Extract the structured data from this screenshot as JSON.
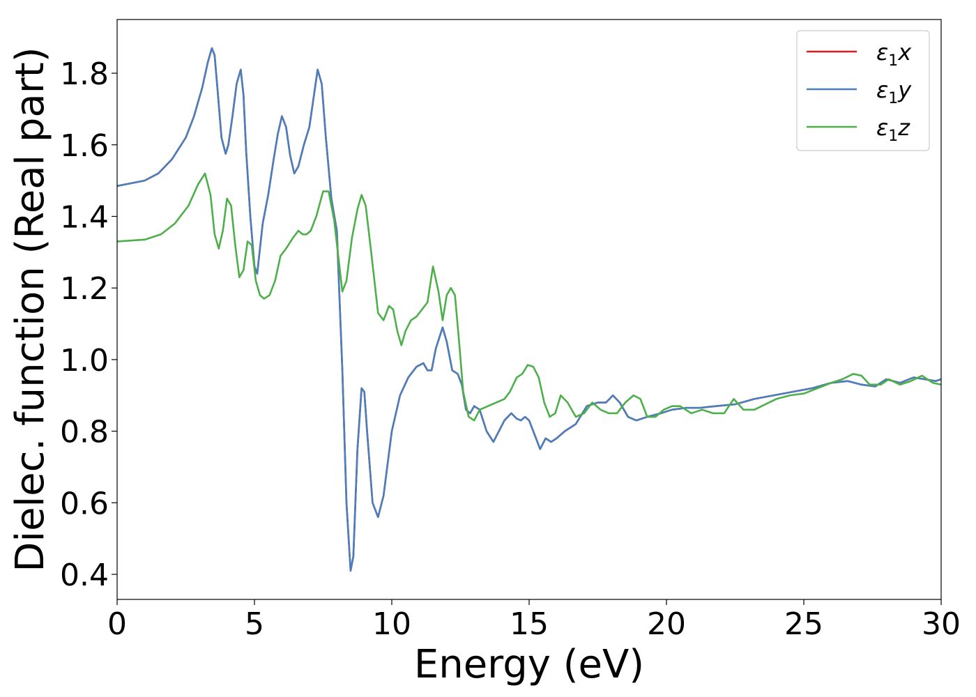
{
  "chart_data": {
    "type": "line",
    "title": "",
    "xlabel": "Energy (eV)",
    "ylabel": "Dielec. function (Real part)",
    "xlim": [
      0,
      30
    ],
    "ylim": [
      0.33,
      1.95
    ],
    "xticks": [
      0,
      5,
      10,
      15,
      20,
      25,
      30
    ],
    "yticks": [
      0.4,
      0.6,
      0.8,
      1.0,
      1.2,
      1.4,
      1.6,
      1.8
    ],
    "xtick_labels": [
      "0",
      "5",
      "10",
      "15",
      "20",
      "25",
      "30"
    ],
    "ytick_labels": [
      "0.4",
      "0.6",
      "0.8",
      "1.0",
      "1.2",
      "1.4",
      "1.6",
      "1.8"
    ],
    "grid": false,
    "legend_position": "top-right",
    "series": [
      {
        "name": "ε₁x",
        "legend_main": "ε",
        "legend_sub": "1",
        "legend_suffix": "x",
        "color": "#e41a1c",
        "x": [
          0,
          1,
          1.5,
          2,
          2.5,
          2.8,
          3.1,
          3.3,
          3.45,
          3.55,
          3.65,
          3.8,
          3.95,
          4.05,
          4.2,
          4.35,
          4.5,
          4.6,
          4.7,
          4.85,
          5.0,
          5.1,
          5.3,
          5.5,
          5.7,
          5.85,
          6.0,
          6.15,
          6.3,
          6.45,
          6.6,
          6.8,
          7.0,
          7.15,
          7.3,
          7.45,
          7.6,
          7.8,
          8.0,
          8.2,
          8.35,
          8.5,
          8.6,
          8.75,
          8.9,
          9.0,
          9.1,
          9.3,
          9.5,
          9.7,
          10.0,
          10.3,
          10.6,
          10.9,
          11.15,
          11.3,
          11.45,
          11.6,
          11.85,
          12.0,
          12.2,
          12.4,
          12.55,
          12.7,
          12.85,
          13.0,
          13.2,
          13.45,
          13.7,
          13.9,
          14.1,
          14.35,
          14.55,
          14.7,
          14.85,
          15.0,
          15.2,
          15.4,
          15.6,
          15.8,
          16.0,
          16.3,
          16.7,
          17.1,
          17.5,
          17.8,
          18.05,
          18.3,
          18.6,
          18.9,
          19.3,
          19.8,
          20.2,
          20.7,
          21.2,
          21.8,
          22.5,
          23.2,
          23.9,
          24.6,
          25.3,
          26.0,
          26.6,
          27.1,
          27.6,
          28.0,
          28.5,
          29.0,
          29.4,
          29.8,
          30.0
        ],
        "y": [
          1.485,
          1.5,
          1.52,
          1.56,
          1.62,
          1.68,
          1.76,
          1.83,
          1.87,
          1.85,
          1.76,
          1.62,
          1.575,
          1.6,
          1.68,
          1.77,
          1.81,
          1.74,
          1.58,
          1.4,
          1.26,
          1.24,
          1.38,
          1.46,
          1.56,
          1.63,
          1.68,
          1.65,
          1.57,
          1.52,
          1.54,
          1.6,
          1.65,
          1.73,
          1.81,
          1.77,
          1.62,
          1.45,
          1.36,
          0.97,
          0.6,
          0.41,
          0.45,
          0.75,
          0.92,
          0.91,
          0.8,
          0.6,
          0.56,
          0.62,
          0.8,
          0.9,
          0.95,
          0.98,
          0.99,
          0.97,
          0.97,
          1.03,
          1.09,
          1.05,
          0.97,
          0.96,
          0.93,
          0.86,
          0.85,
          0.87,
          0.86,
          0.8,
          0.77,
          0.8,
          0.83,
          0.85,
          0.835,
          0.83,
          0.84,
          0.83,
          0.79,
          0.75,
          0.78,
          0.77,
          0.78,
          0.8,
          0.82,
          0.87,
          0.88,
          0.88,
          0.9,
          0.88,
          0.84,
          0.83,
          0.84,
          0.85,
          0.86,
          0.865,
          0.865,
          0.87,
          0.875,
          0.89,
          0.9,
          0.91,
          0.92,
          0.935,
          0.94,
          0.93,
          0.925,
          0.945,
          0.935,
          0.95,
          0.945,
          0.94,
          0.945
        ]
      },
      {
        "name": "ε₁y",
        "legend_main": "ε",
        "legend_sub": "1",
        "legend_suffix": "y",
        "color": "#4a7fbd",
        "x": [
          0,
          1,
          1.5,
          2,
          2.5,
          2.8,
          3.1,
          3.3,
          3.45,
          3.55,
          3.65,
          3.8,
          3.95,
          4.05,
          4.2,
          4.35,
          4.5,
          4.6,
          4.7,
          4.85,
          5.0,
          5.1,
          5.3,
          5.5,
          5.7,
          5.85,
          6.0,
          6.15,
          6.3,
          6.45,
          6.6,
          6.8,
          7.0,
          7.15,
          7.3,
          7.45,
          7.6,
          7.8,
          8.0,
          8.2,
          8.35,
          8.5,
          8.6,
          8.75,
          8.9,
          9.0,
          9.1,
          9.3,
          9.5,
          9.7,
          10.0,
          10.3,
          10.6,
          10.9,
          11.15,
          11.3,
          11.45,
          11.6,
          11.85,
          12.0,
          12.2,
          12.4,
          12.55,
          12.7,
          12.85,
          13.0,
          13.2,
          13.45,
          13.7,
          13.9,
          14.1,
          14.35,
          14.55,
          14.7,
          14.85,
          15.0,
          15.2,
          15.4,
          15.6,
          15.8,
          16.0,
          16.3,
          16.7,
          17.1,
          17.5,
          17.8,
          18.05,
          18.3,
          18.6,
          18.9,
          19.3,
          19.8,
          20.2,
          20.7,
          21.2,
          21.8,
          22.5,
          23.2,
          23.9,
          24.6,
          25.3,
          26.0,
          26.6,
          27.1,
          27.6,
          28.0,
          28.5,
          29.0,
          29.4,
          29.8,
          30.0
        ],
        "y": [
          1.485,
          1.5,
          1.52,
          1.56,
          1.62,
          1.68,
          1.76,
          1.83,
          1.87,
          1.85,
          1.76,
          1.62,
          1.575,
          1.6,
          1.68,
          1.77,
          1.81,
          1.74,
          1.58,
          1.4,
          1.26,
          1.24,
          1.38,
          1.46,
          1.56,
          1.63,
          1.68,
          1.65,
          1.57,
          1.52,
          1.54,
          1.6,
          1.65,
          1.73,
          1.81,
          1.77,
          1.62,
          1.45,
          1.36,
          0.97,
          0.6,
          0.41,
          0.45,
          0.75,
          0.92,
          0.91,
          0.8,
          0.6,
          0.56,
          0.62,
          0.8,
          0.9,
          0.95,
          0.98,
          0.99,
          0.97,
          0.97,
          1.03,
          1.09,
          1.05,
          0.97,
          0.96,
          0.93,
          0.86,
          0.85,
          0.87,
          0.86,
          0.8,
          0.77,
          0.8,
          0.83,
          0.85,
          0.835,
          0.83,
          0.84,
          0.83,
          0.79,
          0.75,
          0.78,
          0.77,
          0.78,
          0.8,
          0.82,
          0.87,
          0.88,
          0.88,
          0.9,
          0.88,
          0.84,
          0.83,
          0.84,
          0.85,
          0.86,
          0.865,
          0.865,
          0.87,
          0.875,
          0.89,
          0.9,
          0.91,
          0.92,
          0.935,
          0.94,
          0.93,
          0.925,
          0.945,
          0.935,
          0.95,
          0.945,
          0.94,
          0.945
        ]
      },
      {
        "name": "ε₁z",
        "legend_main": "ε",
        "legend_sub": "1",
        "legend_suffix": "z",
        "color": "#4daf4a",
        "x": [
          0,
          1,
          1.6,
          2.1,
          2.6,
          2.95,
          3.2,
          3.4,
          3.55,
          3.7,
          3.85,
          4.0,
          4.15,
          4.3,
          4.45,
          4.6,
          4.75,
          4.9,
          5.05,
          5.2,
          5.35,
          5.55,
          5.75,
          5.95,
          6.15,
          6.4,
          6.6,
          6.75,
          6.9,
          7.05,
          7.25,
          7.5,
          7.7,
          7.9,
          8.05,
          8.2,
          8.35,
          8.55,
          8.75,
          8.9,
          9.05,
          9.25,
          9.5,
          9.7,
          9.9,
          10.05,
          10.2,
          10.35,
          10.5,
          10.7,
          10.9,
          11.1,
          11.3,
          11.5,
          11.7,
          11.85,
          12.0,
          12.15,
          12.3,
          12.45,
          12.6,
          12.8,
          13.0,
          13.2,
          13.5,
          13.8,
          14.1,
          14.3,
          14.55,
          14.75,
          14.95,
          15.15,
          15.35,
          15.55,
          15.75,
          15.95,
          16.15,
          16.4,
          16.7,
          17.0,
          17.3,
          17.6,
          17.9,
          18.2,
          18.5,
          18.8,
          19.05,
          19.3,
          19.6,
          19.9,
          20.2,
          20.5,
          20.9,
          21.3,
          21.7,
          22.1,
          22.45,
          22.8,
          23.2,
          23.6,
          24.0,
          24.5,
          25.0,
          25.5,
          26.0,
          26.4,
          26.8,
          27.1,
          27.4,
          27.8,
          28.1,
          28.5,
          28.9,
          29.3,
          29.7,
          30.0
        ],
        "y": [
          1.33,
          1.335,
          1.35,
          1.38,
          1.43,
          1.49,
          1.52,
          1.46,
          1.35,
          1.31,
          1.36,
          1.45,
          1.43,
          1.32,
          1.23,
          1.25,
          1.33,
          1.32,
          1.22,
          1.18,
          1.17,
          1.18,
          1.22,
          1.29,
          1.31,
          1.34,
          1.36,
          1.35,
          1.35,
          1.36,
          1.4,
          1.47,
          1.47,
          1.39,
          1.29,
          1.19,
          1.22,
          1.34,
          1.42,
          1.46,
          1.43,
          1.3,
          1.13,
          1.11,
          1.15,
          1.14,
          1.08,
          1.04,
          1.08,
          1.11,
          1.12,
          1.14,
          1.16,
          1.26,
          1.19,
          1.11,
          1.18,
          1.2,
          1.18,
          1.05,
          0.91,
          0.84,
          0.83,
          0.86,
          0.87,
          0.88,
          0.89,
          0.91,
          0.95,
          0.96,
          0.985,
          0.98,
          0.95,
          0.88,
          0.84,
          0.85,
          0.9,
          0.88,
          0.84,
          0.85,
          0.88,
          0.86,
          0.85,
          0.85,
          0.88,
          0.9,
          0.89,
          0.84,
          0.84,
          0.86,
          0.87,
          0.87,
          0.85,
          0.86,
          0.85,
          0.85,
          0.89,
          0.86,
          0.86,
          0.875,
          0.89,
          0.9,
          0.905,
          0.92,
          0.935,
          0.945,
          0.96,
          0.955,
          0.93,
          0.93,
          0.945,
          0.93,
          0.94,
          0.955,
          0.935,
          0.93
        ]
      }
    ]
  }
}
